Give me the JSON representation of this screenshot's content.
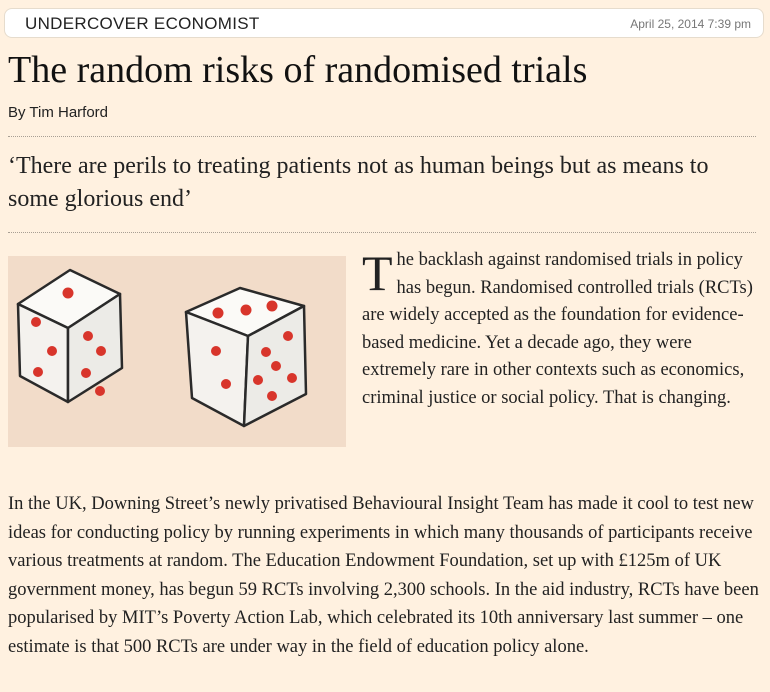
{
  "header": {
    "section": "UNDERCOVER ECONOMIST",
    "date": "April 25, 2014 7:39 pm"
  },
  "article": {
    "title": "The random risks of randomised trials",
    "byline": "By Tim Harford",
    "standfirst": "‘There are perils to treating patients not as human beings but as means to some glorious end’",
    "dropcap": "T",
    "lead_rest": "he backlash against randomised trials in policy has begun. Randomised controlled trials (RCTs) are widely accepted as the foundation for evidence-based medicine. Yet a decade ago, they were extremely rare in other contexts such as economics, criminal justice or social policy. That is changing.",
    "paragraph2": "In the UK, Downing Street’s newly privatised Behavioural Insight Team has made it cool to test new ideas for conducting policy by running experiments in which many thousands of participants receive various treatments at random. The Education Endowment Foundation, set up with £125m of UK government money, has begun 59 RCTs involving 2,300 schools. In the aid industry, RCTs have been popularised by MIT’s Poverty Action Lab, which celebrated its 10th anniversary last summer – one estimate is that 500 RCTs are under way in the field of education policy alone."
  },
  "illustration": {
    "subject": "two dice",
    "background": "#f2dcc9",
    "pip_color": "#d8352b"
  },
  "colors": {
    "page_background": "#fff1e0",
    "text": "#1a1a1a",
    "date_text": "#777777"
  }
}
